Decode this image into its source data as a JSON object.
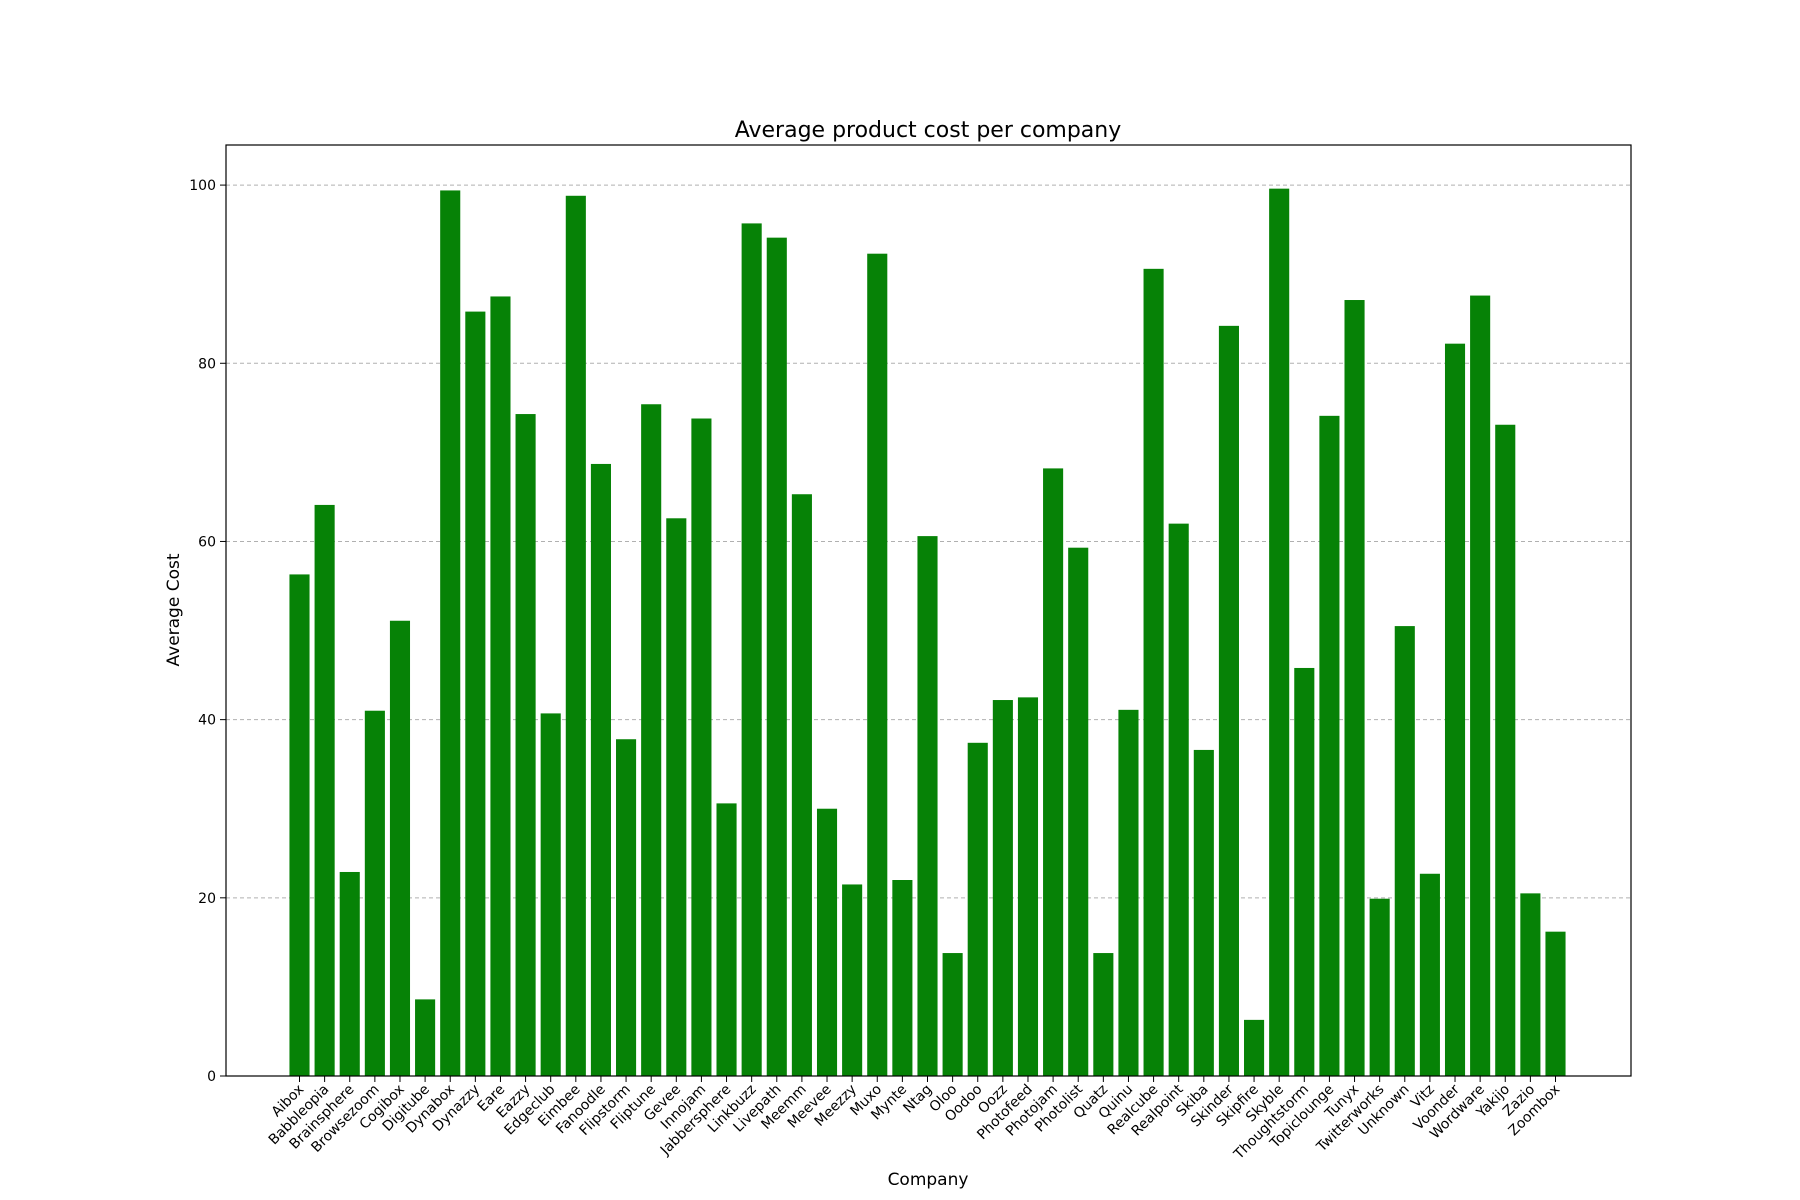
{
  "chart_data": {
    "type": "bar",
    "title": "Average product cost per company",
    "xlabel": "Company",
    "ylabel": "Average Cost",
    "ylim": [
      0,
      104.5
    ],
    "yticks": [
      0,
      20,
      40,
      60,
      80,
      100
    ],
    "grid": "y-dashed",
    "bar_color": "#068206",
    "categories": [
      "Aibox",
      "Babbleopia",
      "Brainsphere",
      "Browsezoom",
      "Cogibox",
      "Digitube",
      "Dynabox",
      "Dynazzy",
      "Eare",
      "Eazzy",
      "Edgeclub",
      "Eimbee",
      "Fanoodle",
      "Flipstorm",
      "Fliptune",
      "Gevee",
      "Innojam",
      "Jabbersphere",
      "Linkbuzz",
      "Livepath",
      "Meemm",
      "Meevee",
      "Meezzy",
      "Muxo",
      "Mynte",
      "Ntag",
      "Oloo",
      "Oodoo",
      "Oozz",
      "Photofeed",
      "Photojam",
      "Photolist",
      "Quatz",
      "Quinu",
      "Realcube",
      "Realpoint",
      "Skiba",
      "Skinder",
      "Skipfire",
      "Skyble",
      "Thoughtstorm",
      "Topiclounge",
      "Tunyx",
      "Twitterworks",
      "Unknown",
      "Vitz",
      "Voonder",
      "Wordware",
      "Yakijo",
      "Zazio",
      "Zoombox"
    ],
    "values": [
      56.3,
      64.1,
      22.9,
      41.0,
      51.1,
      8.6,
      99.4,
      85.8,
      87.5,
      74.3,
      40.7,
      98.8,
      68.7,
      37.8,
      75.4,
      62.6,
      73.8,
      30.6,
      95.7,
      94.1,
      65.3,
      30.0,
      21.5,
      92.3,
      22.0,
      60.6,
      13.8,
      37.4,
      42.2,
      42.5,
      68.2,
      59.3,
      13.8,
      41.1,
      90.6,
      62.0,
      36.6,
      84.2,
      6.3,
      99.6,
      45.8,
      74.1,
      87.1,
      19.9,
      50.5,
      22.7,
      82.2,
      87.6,
      73.1,
      20.5,
      16.2
    ]
  }
}
